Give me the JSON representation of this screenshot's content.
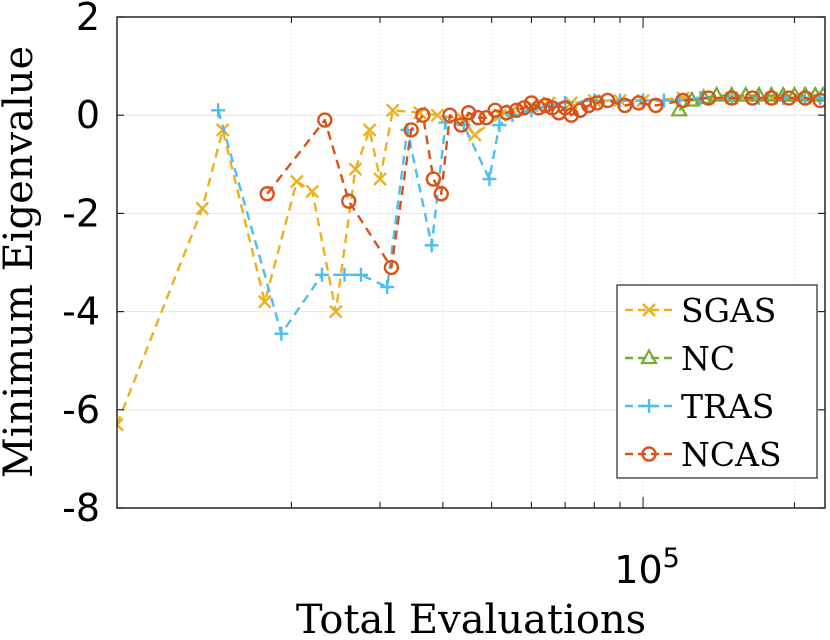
{
  "chart_data": {
    "type": "line",
    "xlabel": "Total Evaluations",
    "ylabel": "Minimum Eigenvalue",
    "xscale": "log",
    "xlim": [
      9000,
      230000
    ],
    "ylim": [
      -8,
      2
    ],
    "yticks": [
      {
        "value": 2,
        "label": "2"
      },
      {
        "value": 0,
        "label": "0"
      },
      {
        "value": -2,
        "label": "-2"
      },
      {
        "value": -4,
        "label": "-4"
      },
      {
        "value": -6,
        "label": "-6"
      },
      {
        "value": -8,
        "label": "-8"
      }
    ],
    "xticks": [
      {
        "value": 100000,
        "base": "10",
        "exponent": "5"
      }
    ],
    "x_gridlines": [
      20000,
      30000,
      40000,
      50000,
      60000,
      70000,
      80000,
      90000,
      100000,
      200000
    ],
    "grid": true,
    "legend_position": "bottom-right",
    "series": [
      {
        "name": "SGAS",
        "color": "#EDB120",
        "marker": "x",
        "points": [
          [
            9000,
            -6.3
          ],
          [
            13300,
            -1.9
          ],
          [
            14600,
            -0.3
          ],
          [
            17700,
            -3.8
          ],
          [
            20500,
            -1.35
          ],
          [
            22000,
            -1.55
          ],
          [
            24500,
            -4.0
          ],
          [
            26800,
            -1.1
          ],
          [
            28600,
            -0.3
          ],
          [
            30000,
            -1.3
          ],
          [
            31800,
            0.1
          ],
          [
            36000,
            0.05
          ],
          [
            39000,
            0.0
          ],
          [
            44000,
            -0.1
          ],
          [
            46300,
            -0.4
          ],
          [
            52000,
            0.0
          ],
          [
            55000,
            0.1
          ],
          [
            60000,
            0.2
          ],
          [
            65000,
            0.25
          ],
          [
            72000,
            0.25
          ],
          [
            80000,
            0.3
          ],
          [
            90000,
            0.3
          ],
          [
            100000,
            0.3
          ],
          [
            120000,
            0.35
          ],
          [
            150000,
            0.35
          ],
          [
            180000,
            0.35
          ],
          [
            220000,
            0.35
          ]
        ]
      },
      {
        "name": "NC",
        "color": "#77AC30",
        "marker": "triangle",
        "points": [
          [
            118000,
            0.1
          ],
          [
            125000,
            0.3
          ],
          [
            132000,
            0.35
          ],
          [
            140000,
            0.4
          ],
          [
            150000,
            0.4
          ],
          [
            160000,
            0.4
          ],
          [
            170000,
            0.4
          ],
          [
            180000,
            0.4
          ],
          [
            190000,
            0.4
          ],
          [
            200000,
            0.4
          ],
          [
            210000,
            0.4
          ],
          [
            220000,
            0.4
          ],
          [
            228000,
            0.4
          ]
        ]
      },
      {
        "name": "TRAS",
        "color": "#4DBEEE",
        "marker": "plus",
        "points": [
          [
            14300,
            0.1
          ],
          [
            19100,
            -4.45
          ],
          [
            23000,
            -3.25
          ],
          [
            25500,
            -3.25
          ],
          [
            27500,
            -3.25
          ],
          [
            31000,
            -3.5
          ],
          [
            34000,
            -0.3
          ],
          [
            38000,
            -2.65
          ],
          [
            40500,
            -0.15
          ],
          [
            44000,
            -0.2
          ],
          [
            49500,
            -1.3
          ],
          [
            51800,
            -0.2
          ],
          [
            55000,
            0.0
          ],
          [
            60000,
            0.1
          ],
          [
            65000,
            0.2
          ],
          [
            70000,
            0.25
          ],
          [
            80000,
            0.3
          ],
          [
            90000,
            0.3
          ],
          [
            100000,
            0.3
          ],
          [
            110000,
            0.3
          ],
          [
            118000,
            0.3
          ],
          [
            130000,
            0.35
          ],
          [
            150000,
            0.35
          ],
          [
            170000,
            0.35
          ],
          [
            190000,
            0.35
          ],
          [
            210000,
            0.35
          ],
          [
            225000,
            0.35
          ]
        ]
      },
      {
        "name": "NCAS",
        "color": "#D95319",
        "marker": "circle",
        "points": [
          [
            17900,
            -1.6
          ],
          [
            23300,
            -0.1
          ],
          [
            26000,
            -1.75
          ],
          [
            31600,
            -3.1
          ],
          [
            34600,
            -0.3
          ],
          [
            36500,
            0.0
          ],
          [
            38300,
            -1.3
          ],
          [
            39700,
            -1.6
          ],
          [
            41300,
            0.0
          ],
          [
            43500,
            -0.2
          ],
          [
            45000,
            0.05
          ],
          [
            47000,
            -0.05
          ],
          [
            48800,
            -0.05
          ],
          [
            50800,
            0.1
          ],
          [
            53500,
            0.05
          ],
          [
            56000,
            0.1
          ],
          [
            58000,
            0.15
          ],
          [
            60000,
            0.25
          ],
          [
            62000,
            0.15
          ],
          [
            64000,
            0.2
          ],
          [
            66000,
            0.15
          ],
          [
            68000,
            0.05
          ],
          [
            70000,
            0.15
          ],
          [
            72000,
            0.0
          ],
          [
            75000,
            0.1
          ],
          [
            78000,
            0.2
          ],
          [
            81000,
            0.25
          ],
          [
            85000,
            0.3
          ],
          [
            92000,
            0.2
          ],
          [
            98000,
            0.25
          ],
          [
            106000,
            0.2
          ],
          [
            120000,
            0.3
          ],
          [
            135000,
            0.35
          ],
          [
            150000,
            0.35
          ],
          [
            165000,
            0.35
          ],
          [
            180000,
            0.35
          ],
          [
            195000,
            0.35
          ],
          [
            210000,
            0.35
          ],
          [
            225000,
            0.3
          ]
        ]
      }
    ]
  }
}
